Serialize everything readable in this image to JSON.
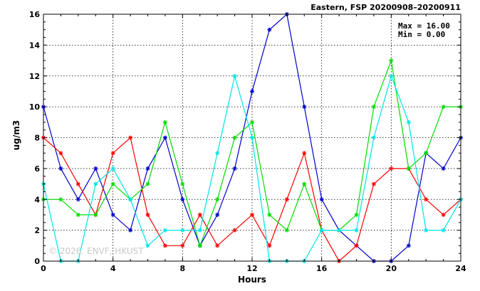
{
  "chart_data": {
    "type": "line",
    "title": "Eastern, FSP 20200908–20200911",
    "xlabel": "Hours",
    "ylabel": "ug/m3",
    "xlim": [
      0,
      24
    ],
    "ylim": [
      0,
      16
    ],
    "xticks": [
      0,
      4,
      8,
      12,
      16,
      20,
      24
    ],
    "yticks": [
      0,
      2,
      4,
      6,
      8,
      10,
      12,
      14,
      16
    ],
    "grid": true,
    "stats": {
      "max_label": "Max = 16.00",
      "min_label": "Min =  0.00"
    },
    "watermark": "© 2026. ENVF, HKUST",
    "x": [
      0,
      1,
      2,
      3,
      4,
      5,
      6,
      7,
      8,
      9,
      10,
      11,
      12,
      13,
      14,
      15,
      16,
      17,
      18,
      19,
      20,
      21,
      22,
      23,
      24
    ],
    "series": [
      {
        "color": "#0000cc",
        "values": [
          10,
          6,
          4,
          6,
          3,
          2,
          6,
          8,
          4,
          1,
          3,
          6,
          11,
          15,
          16,
          10,
          4,
          2,
          1,
          0,
          0,
          1,
          7,
          6,
          8
        ]
      },
      {
        "color": "#ff0000",
        "values": [
          8,
          7,
          5,
          3,
          7,
          8,
          3,
          1,
          1,
          3,
          1,
          2,
          3,
          1,
          4,
          7,
          2,
          0,
          1,
          5,
          6,
          6,
          4,
          3,
          4
        ]
      },
      {
        "color": "#00dd00",
        "values": [
          4,
          4,
          3,
          3,
          5,
          4,
          5,
          9,
          5,
          1,
          4,
          8,
          9,
          3,
          2,
          5,
          2,
          2,
          3,
          10,
          13,
          6,
          7,
          10,
          10
        ]
      },
      {
        "color": "#00e5e5",
        "values": [
          5,
          0,
          0,
          5,
          6,
          4,
          1,
          2,
          2,
          2,
          7,
          12,
          8,
          0,
          0,
          0,
          2,
          2,
          2,
          8,
          12,
          9,
          2,
          2,
          4
        ]
      }
    ]
  }
}
